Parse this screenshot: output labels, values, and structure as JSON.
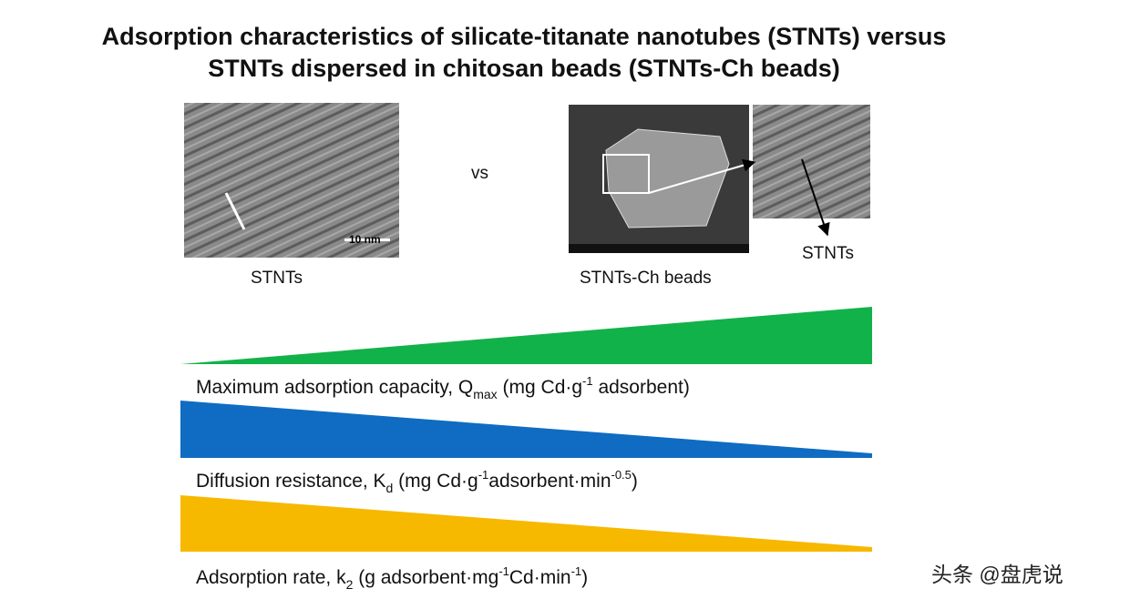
{
  "title": {
    "lines": [
      "Adsorption characteristics of silicate-titanate nanotubes (STNTs) versus",
      "STNTs dispersed in chitosan beads (STNTs-Ch beads)"
    ]
  },
  "images": {
    "left": {
      "caption": "STNTs",
      "scale_bar": "10 nm"
    },
    "separator": "vs",
    "right": {
      "caption": "STNTs-Ch beads",
      "callout": "STNTs"
    }
  },
  "wedges": [
    {
      "parts": [
        "Maximum adsorption capacity, Q",
        "max",
        " (mg Cd·g",
        "-1",
        " adsorbent)"
      ]
    },
    {
      "parts": [
        "Diffusion resistance, K",
        "d",
        " (mg Cd·g",
        "-1",
        "adsorbent·min",
        "-0.5",
        ")"
      ]
    },
    {
      "parts": [
        "Adsorption rate, k",
        "2",
        " (g adsorbent·mg",
        "-1",
        "Cd·min",
        "-1",
        ")"
      ]
    }
  ],
  "watermark": "头条 @盘虎说"
}
